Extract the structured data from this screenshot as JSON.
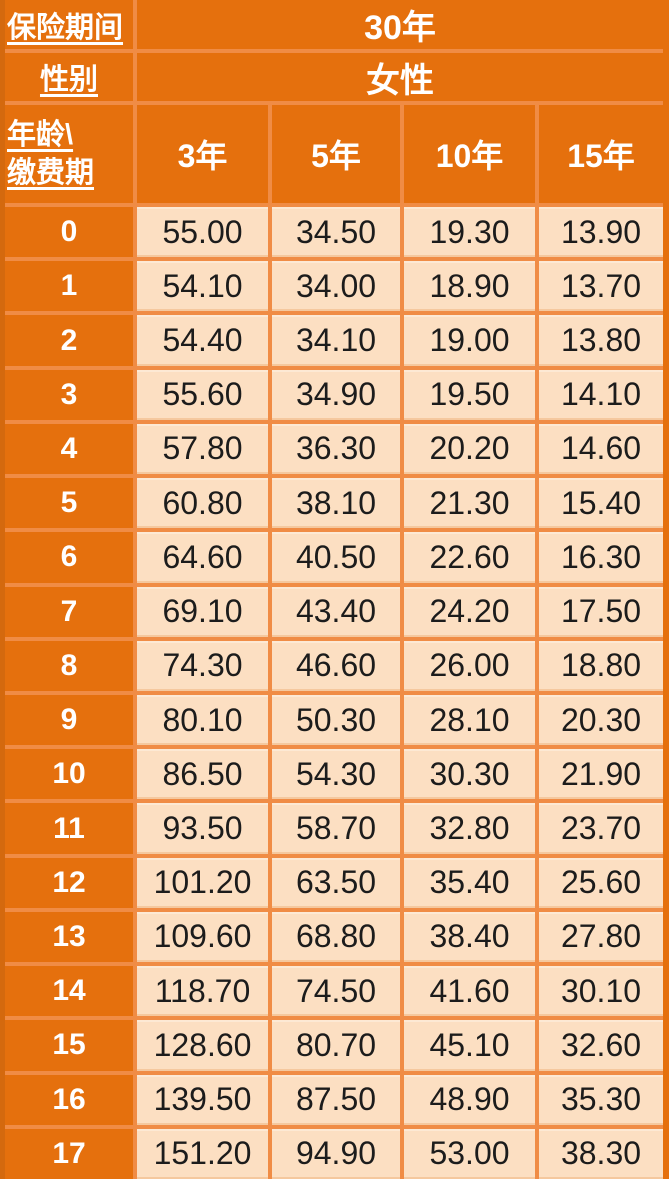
{
  "table": {
    "title_semantic": "insurance-premium-rate-table",
    "header": {
      "row1_label": "保险期间",
      "row1_value": "30年",
      "row2_label": "性别",
      "row2_value": "女性",
      "row3_label_line1": "年龄\\",
      "row3_label_line2": "缴费期",
      "payment_terms": [
        "3年",
        "5年",
        "10年",
        "15年"
      ]
    },
    "rows": [
      {
        "age": "0",
        "values": [
          "55.00",
          "34.50",
          "19.30",
          "13.90"
        ]
      },
      {
        "age": "1",
        "values": [
          "54.10",
          "34.00",
          "18.90",
          "13.70"
        ]
      },
      {
        "age": "2",
        "values": [
          "54.40",
          "34.10",
          "19.00",
          "13.80"
        ]
      },
      {
        "age": "3",
        "values": [
          "55.60",
          "34.90",
          "19.50",
          "14.10"
        ]
      },
      {
        "age": "4",
        "values": [
          "57.80",
          "36.30",
          "20.20",
          "14.60"
        ]
      },
      {
        "age": "5",
        "values": [
          "60.80",
          "38.10",
          "21.30",
          "15.40"
        ]
      },
      {
        "age": "6",
        "values": [
          "64.60",
          "40.50",
          "22.60",
          "16.30"
        ]
      },
      {
        "age": "7",
        "values": [
          "69.10",
          "43.40",
          "24.20",
          "17.50"
        ]
      },
      {
        "age": "8",
        "values": [
          "74.30",
          "46.60",
          "26.00",
          "18.80"
        ]
      },
      {
        "age": "9",
        "values": [
          "80.10",
          "50.30",
          "28.10",
          "20.30"
        ]
      },
      {
        "age": "10",
        "values": [
          "86.50",
          "54.30",
          "30.30",
          "21.90"
        ]
      },
      {
        "age": "11",
        "values": [
          "93.50",
          "58.70",
          "32.80",
          "23.70"
        ]
      },
      {
        "age": "12",
        "values": [
          "101.20",
          "63.50",
          "35.40",
          "25.60"
        ]
      },
      {
        "age": "13",
        "values": [
          "109.60",
          "68.80",
          "38.40",
          "27.80"
        ]
      },
      {
        "age": "14",
        "values": [
          "118.70",
          "74.50",
          "41.60",
          "30.10"
        ]
      },
      {
        "age": "15",
        "values": [
          "128.60",
          "80.70",
          "45.10",
          "32.60"
        ]
      },
      {
        "age": "16",
        "values": [
          "139.50",
          "87.50",
          "48.90",
          "35.30"
        ]
      },
      {
        "age": "17",
        "values": [
          "151.20",
          "94.90",
          "53.00",
          "38.30"
        ]
      }
    ]
  },
  "colors": {
    "cell_orange": "#E5700D",
    "separator_orange": "#F08C45",
    "left_edge_orange": "#D4690E",
    "data_cell_peach": "#FCDFC2",
    "data_text": "#1C1C1C",
    "header_text": "#FFFFFF"
  }
}
